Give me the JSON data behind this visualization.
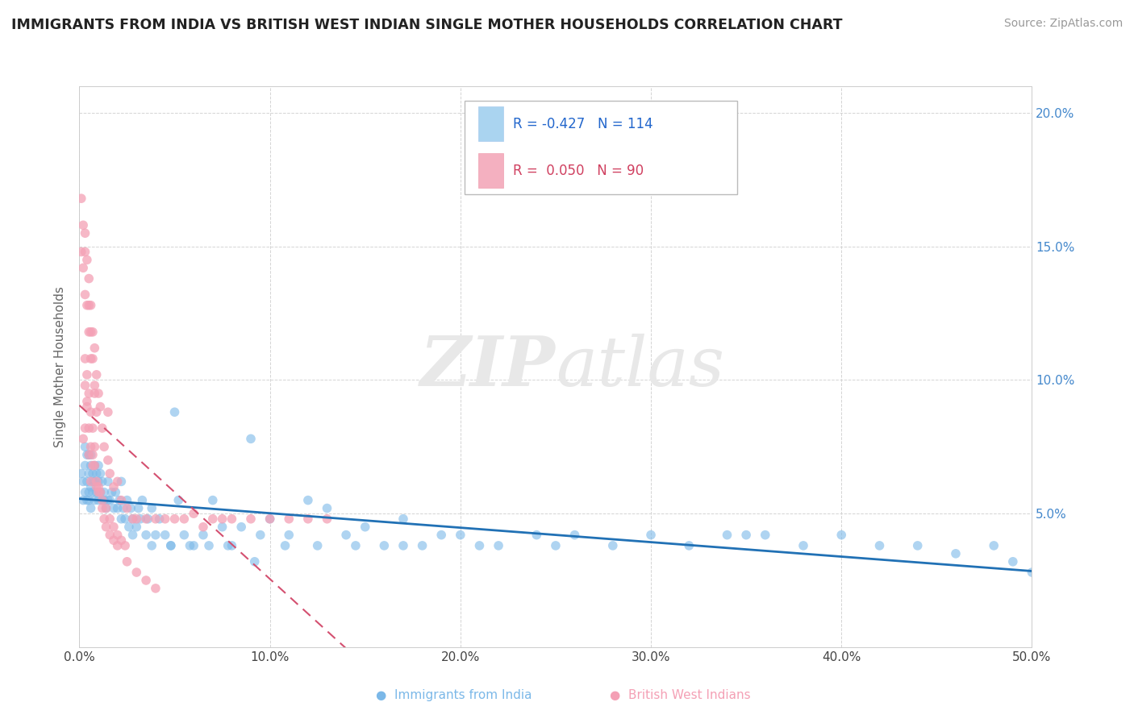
{
  "title": "IMMIGRANTS FROM INDIA VS BRITISH WEST INDIAN SINGLE MOTHER HOUSEHOLDS CORRELATION CHART",
  "source": "Source: ZipAtlas.com",
  "ylabel": "Single Mother Households",
  "xlim": [
    0.0,
    0.5
  ],
  "ylim": [
    0.0,
    0.21
  ],
  "xticks": [
    0.0,
    0.1,
    0.2,
    0.3,
    0.4,
    0.5
  ],
  "xtick_labels": [
    "0.0%",
    "10.0%",
    "20.0%",
    "30.0%",
    "40.0%",
    "50.0%"
  ],
  "yticks": [
    0.0,
    0.05,
    0.1,
    0.15,
    0.2
  ],
  "ytick_labels_right": [
    "",
    "5.0%",
    "10.0%",
    "15.0%",
    "20.0%"
  ],
  "blue_color": "#7bb8e8",
  "pink_color": "#f4a0b5",
  "blue_line_color": "#2171b5",
  "pink_line_color": "#d45070",
  "R_blue": -0.427,
  "N_blue": 114,
  "R_pink": 0.05,
  "N_pink": 90,
  "background_color": "#ffffff",
  "grid_color": "#d0d0d0",
  "blue_scatter_x": [
    0.001,
    0.002,
    0.002,
    0.003,
    0.003,
    0.003,
    0.004,
    0.004,
    0.004,
    0.005,
    0.005,
    0.005,
    0.005,
    0.006,
    0.006,
    0.006,
    0.006,
    0.007,
    0.007,
    0.007,
    0.008,
    0.008,
    0.008,
    0.009,
    0.009,
    0.01,
    0.01,
    0.01,
    0.011,
    0.011,
    0.012,
    0.012,
    0.013,
    0.013,
    0.014,
    0.015,
    0.015,
    0.016,
    0.017,
    0.018,
    0.019,
    0.02,
    0.021,
    0.022,
    0.022,
    0.023,
    0.024,
    0.025,
    0.026,
    0.027,
    0.028,
    0.03,
    0.031,
    0.032,
    0.033,
    0.035,
    0.036,
    0.038,
    0.04,
    0.042,
    0.045,
    0.048,
    0.05,
    0.052,
    0.055,
    0.06,
    0.065,
    0.07,
    0.075,
    0.08,
    0.085,
    0.09,
    0.095,
    0.1,
    0.11,
    0.12,
    0.13,
    0.14,
    0.15,
    0.16,
    0.17,
    0.18,
    0.19,
    0.2,
    0.22,
    0.24,
    0.26,
    0.28,
    0.3,
    0.32,
    0.34,
    0.36,
    0.38,
    0.4,
    0.42,
    0.44,
    0.46,
    0.48,
    0.49,
    0.5,
    0.35,
    0.25,
    0.21,
    0.17,
    0.145,
    0.125,
    0.108,
    0.092,
    0.078,
    0.068,
    0.058,
    0.048,
    0.038,
    0.028
  ],
  "blue_scatter_y": [
    0.065,
    0.062,
    0.055,
    0.075,
    0.068,
    0.058,
    0.072,
    0.062,
    0.055,
    0.065,
    0.058,
    0.072,
    0.055,
    0.068,
    0.06,
    0.052,
    0.072,
    0.062,
    0.058,
    0.065,
    0.055,
    0.062,
    0.068,
    0.058,
    0.065,
    0.055,
    0.062,
    0.068,
    0.058,
    0.065,
    0.055,
    0.062,
    0.055,
    0.058,
    0.052,
    0.055,
    0.062,
    0.055,
    0.058,
    0.052,
    0.058,
    0.052,
    0.055,
    0.062,
    0.048,
    0.052,
    0.048,
    0.055,
    0.045,
    0.052,
    0.048,
    0.045,
    0.052,
    0.048,
    0.055,
    0.042,
    0.048,
    0.052,
    0.042,
    0.048,
    0.042,
    0.038,
    0.088,
    0.055,
    0.042,
    0.038,
    0.042,
    0.055,
    0.045,
    0.038,
    0.045,
    0.078,
    0.042,
    0.048,
    0.042,
    0.055,
    0.052,
    0.042,
    0.045,
    0.038,
    0.048,
    0.038,
    0.042,
    0.042,
    0.038,
    0.042,
    0.042,
    0.038,
    0.042,
    0.038,
    0.042,
    0.042,
    0.038,
    0.042,
    0.038,
    0.038,
    0.035,
    0.038,
    0.032,
    0.028,
    0.042,
    0.038,
    0.038,
    0.038,
    0.038,
    0.038,
    0.038,
    0.032,
    0.038,
    0.038,
    0.038,
    0.038,
    0.038,
    0.042
  ],
  "pink_scatter_x": [
    0.001,
    0.001,
    0.002,
    0.002,
    0.003,
    0.003,
    0.003,
    0.004,
    0.004,
    0.005,
    0.005,
    0.005,
    0.006,
    0.006,
    0.006,
    0.007,
    0.007,
    0.008,
    0.008,
    0.009,
    0.009,
    0.01,
    0.011,
    0.012,
    0.013,
    0.015,
    0.016,
    0.018,
    0.02,
    0.022,
    0.025,
    0.028,
    0.03,
    0.035,
    0.04,
    0.045,
    0.05,
    0.055,
    0.06,
    0.065,
    0.07,
    0.075,
    0.08,
    0.09,
    0.1,
    0.11,
    0.12,
    0.13,
    0.015,
    0.008,
    0.004,
    0.003,
    0.002,
    0.005,
    0.007,
    0.006,
    0.009,
    0.01,
    0.012,
    0.014,
    0.016,
    0.018,
    0.02,
    0.022,
    0.024,
    0.003,
    0.004,
    0.005,
    0.006,
    0.007,
    0.008,
    0.009,
    0.01,
    0.011,
    0.012,
    0.013,
    0.014,
    0.016,
    0.018,
    0.02,
    0.025,
    0.03,
    0.035,
    0.04,
    0.003,
    0.004,
    0.005,
    0.006,
    0.007,
    0.008
  ],
  "pink_scatter_y": [
    0.168,
    0.148,
    0.158,
    0.142,
    0.155,
    0.148,
    0.132,
    0.145,
    0.128,
    0.138,
    0.128,
    0.118,
    0.128,
    0.118,
    0.108,
    0.118,
    0.108,
    0.112,
    0.098,
    0.102,
    0.088,
    0.095,
    0.09,
    0.082,
    0.075,
    0.07,
    0.065,
    0.06,
    0.062,
    0.055,
    0.052,
    0.048,
    0.048,
    0.048,
    0.048,
    0.048,
    0.048,
    0.048,
    0.05,
    0.045,
    0.048,
    0.048,
    0.048,
    0.048,
    0.048,
    0.048,
    0.048,
    0.048,
    0.088,
    0.095,
    0.09,
    0.082,
    0.078,
    0.072,
    0.068,
    0.062,
    0.06,
    0.058,
    0.055,
    0.052,
    0.048,
    0.045,
    0.042,
    0.04,
    0.038,
    0.098,
    0.092,
    0.082,
    0.075,
    0.072,
    0.068,
    0.062,
    0.06,
    0.058,
    0.052,
    0.048,
    0.045,
    0.042,
    0.04,
    0.038,
    0.032,
    0.028,
    0.025,
    0.022,
    0.108,
    0.102,
    0.095,
    0.088,
    0.082,
    0.075
  ]
}
